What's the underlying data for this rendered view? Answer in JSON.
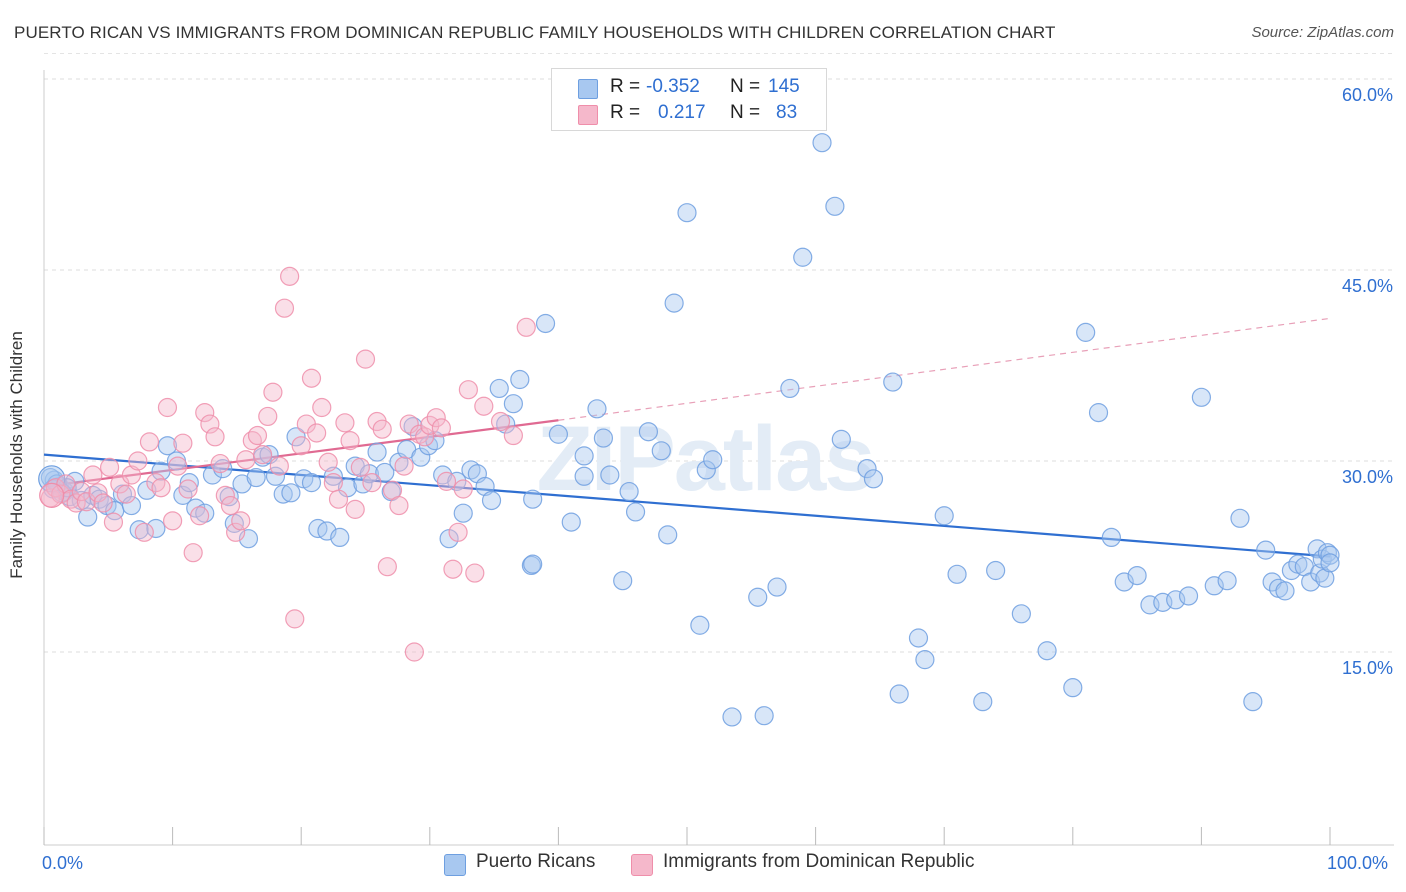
{
  "header": {
    "title": "PUERTO RICAN VS IMMIGRANTS FROM DOMINICAN REPUBLIC FAMILY HOUSEHOLDS WITH CHILDREN CORRELATION CHART",
    "source": "Source: ZipAtlas.com"
  },
  "legend": {
    "rows": [
      {
        "r_label": "R =",
        "r_value": "-0.352",
        "n_label": "N =",
        "n_value": "145",
        "color": "#a8c8f0"
      },
      {
        "r_label": "R =",
        "r_value": "0.217",
        "n_label": "N =",
        "n_value": "83",
        "color": "#f5b8cb"
      }
    ]
  },
  "bottom_legend": [
    {
      "label": "Puerto Ricans",
      "color": "#a8c8f0"
    },
    {
      "label": "Immigrants from Dominican Republic",
      "color": "#f5b8cb"
    }
  ],
  "axes": {
    "ylabel": "Family Households with Children",
    "x_min_label": "0.0%",
    "x_max_label": "100.0%",
    "y_ticks": [
      "15.0%",
      "30.0%",
      "45.0%",
      "60.0%"
    ]
  },
  "watermark": "ZIPatlas",
  "chart_data": {
    "type": "scatter",
    "xlabel": "",
    "ylabel": "Family Households with Children",
    "xlim": [
      0,
      100
    ],
    "ylim": [
      0,
      63
    ],
    "grid": true,
    "legend_position": "top-center",
    "series": [
      {
        "name": "Puerto Ricans",
        "color": "#6e9fe0",
        "fill": "#a8c8f0",
        "trend": {
          "x0": 0,
          "y0": 30.5,
          "x1": 100,
          "y1": 22.5
        },
        "points": [
          [
            0.8,
            28.5
          ],
          [
            1.2,
            28.0
          ],
          [
            1.6,
            27.6
          ],
          [
            2.0,
            27.2
          ],
          [
            2.4,
            28.4
          ],
          [
            2.9,
            26.9
          ],
          [
            3.4,
            25.6
          ],
          [
            3.8,
            27.3
          ],
          [
            4.3,
            27.0
          ],
          [
            4.9,
            26.5
          ],
          [
            5.5,
            26.1
          ],
          [
            6.1,
            27.4
          ],
          [
            6.8,
            26.5
          ],
          [
            7.4,
            24.6
          ],
          [
            8.0,
            27.7
          ],
          [
            8.7,
            24.7
          ],
          [
            9.1,
            29.2
          ],
          [
            9.6,
            31.2
          ],
          [
            10.3,
            30.0
          ],
          [
            10.8,
            27.3
          ],
          [
            11.3,
            28.3
          ],
          [
            11.8,
            26.3
          ],
          [
            12.5,
            25.9
          ],
          [
            13.1,
            28.9
          ],
          [
            13.9,
            29.4
          ],
          [
            14.4,
            27.2
          ],
          [
            14.8,
            25.1
          ],
          [
            15.4,
            28.2
          ],
          [
            15.9,
            23.9
          ],
          [
            16.5,
            28.7
          ],
          [
            17.0,
            30.3
          ],
          [
            17.5,
            30.5
          ],
          [
            18.0,
            28.8
          ],
          [
            18.6,
            27.4
          ],
          [
            19.2,
            27.5
          ],
          [
            19.6,
            31.9
          ],
          [
            20.2,
            28.6
          ],
          [
            20.8,
            28.3
          ],
          [
            21.3,
            24.7
          ],
          [
            22.0,
            24.5
          ],
          [
            22.5,
            28.8
          ],
          [
            23.0,
            24.0
          ],
          [
            23.6,
            27.9
          ],
          [
            24.2,
            29.6
          ],
          [
            24.8,
            28.2
          ],
          [
            25.3,
            29.0
          ],
          [
            25.9,
            30.7
          ],
          [
            26.5,
            29.1
          ],
          [
            27.0,
            27.6
          ],
          [
            27.6,
            29.9
          ],
          [
            28.2,
            30.9
          ],
          [
            28.7,
            32.7
          ],
          [
            29.3,
            30.3
          ],
          [
            29.9,
            31.2
          ],
          [
            30.4,
            31.6
          ],
          [
            31.0,
            28.9
          ],
          [
            31.5,
            23.9
          ],
          [
            32.1,
            28.4
          ],
          [
            32.6,
            25.9
          ],
          [
            33.2,
            29.3
          ],
          [
            33.7,
            29.0
          ],
          [
            34.3,
            28.0
          ],
          [
            34.8,
            26.9
          ],
          [
            35.4,
            35.7
          ],
          [
            35.9,
            32.9
          ],
          [
            36.5,
            34.5
          ],
          [
            37.0,
            36.4
          ],
          [
            38.0,
            27.0
          ],
          [
            37.9,
            21.8
          ],
          [
            38.0,
            21.9
          ],
          [
            39.0,
            40.8
          ],
          [
            40.0,
            32.1
          ],
          [
            41.0,
            25.2
          ],
          [
            42.0,
            28.8
          ],
          [
            42.0,
            30.4
          ],
          [
            43.0,
            34.1
          ],
          [
            43.5,
            31.8
          ],
          [
            44.0,
            28.9
          ],
          [
            45.0,
            20.6
          ],
          [
            45.5,
            27.6
          ],
          [
            46.0,
            26.0
          ],
          [
            47.0,
            32.3
          ],
          [
            48.0,
            30.8
          ],
          [
            48.5,
            24.2
          ],
          [
            49.0,
            42.4
          ],
          [
            50.0,
            49.5
          ],
          [
            51.0,
            17.1
          ],
          [
            51.5,
            29.3
          ],
          [
            52.0,
            30.1
          ],
          [
            53.5,
            9.9
          ],
          [
            55.5,
            19.3
          ],
          [
            56.0,
            10.0
          ],
          [
            57.0,
            20.1
          ],
          [
            58.0,
            35.7
          ],
          [
            59.0,
            46.0
          ],
          [
            60.5,
            55.0
          ],
          [
            61.5,
            50.0
          ],
          [
            62.0,
            31.7
          ],
          [
            64.0,
            29.4
          ],
          [
            64.5,
            28.6
          ],
          [
            66.0,
            36.2
          ],
          [
            66.5,
            11.7
          ],
          [
            68.0,
            16.1
          ],
          [
            68.5,
            14.4
          ],
          [
            70.0,
            25.7
          ],
          [
            71.0,
            21.1
          ],
          [
            73.0,
            11.1
          ],
          [
            74.0,
            21.4
          ],
          [
            76.0,
            18.0
          ],
          [
            78.0,
            15.1
          ],
          [
            80.0,
            12.2
          ],
          [
            81.0,
            40.1
          ],
          [
            82.0,
            33.8
          ],
          [
            83.0,
            24.0
          ],
          [
            84.0,
            20.5
          ],
          [
            85.0,
            21.0
          ],
          [
            86.0,
            18.7
          ],
          [
            87.0,
            18.9
          ],
          [
            88.0,
            19.1
          ],
          [
            89.0,
            19.4
          ],
          [
            90.0,
            35.0
          ],
          [
            91.0,
            20.2
          ],
          [
            92.0,
            20.6
          ],
          [
            93.0,
            25.5
          ],
          [
            94.0,
            11.1
          ],
          [
            95.0,
            23.0
          ],
          [
            95.5,
            20.5
          ],
          [
            96.0,
            20.0
          ],
          [
            96.5,
            19.8
          ],
          [
            97.0,
            21.4
          ],
          [
            97.5,
            21.9
          ],
          [
            98.0,
            21.7
          ],
          [
            98.5,
            20.5
          ],
          [
            99.0,
            23.1
          ],
          [
            99.2,
            21.2
          ],
          [
            99.4,
            22.3
          ],
          [
            99.6,
            20.8
          ],
          [
            99.8,
            22.8
          ],
          [
            100.0,
            22.6
          ],
          [
            100.0,
            22.0
          ],
          [
            0.5,
            28.7
          ],
          [
            0.7,
            27.8
          ],
          [
            1.0,
            28.2
          ],
          [
            1.4,
            27.5
          ],
          [
            1.8,
            27.9
          ]
        ]
      },
      {
        "name": "Immigrants from Dominican Republic",
        "color": "#ef8eaa",
        "fill": "#f5b8cb",
        "trend": {
          "x0": 0,
          "y0": 28.0,
          "x1": 40,
          "y1": 33.2
        },
        "trend_dashed": {
          "x0": 40,
          "y0": 33.2,
          "x1": 100,
          "y1": 41.2
        },
        "points": [
          [
            0.5,
            27.1
          ],
          [
            0.9,
            27.9
          ],
          [
            1.3,
            27.4
          ],
          [
            1.7,
            28.2
          ],
          [
            2.1,
            27.0
          ],
          [
            2.5,
            26.7
          ],
          [
            2.9,
            27.6
          ],
          [
            3.3,
            26.8
          ],
          [
            3.8,
            28.9
          ],
          [
            4.2,
            27.5
          ],
          [
            4.6,
            26.7
          ],
          [
            5.1,
            29.5
          ],
          [
            5.4,
            25.2
          ],
          [
            5.9,
            28.2
          ],
          [
            6.4,
            27.4
          ],
          [
            6.8,
            28.9
          ],
          [
            7.3,
            30.0
          ],
          [
            7.8,
            24.4
          ],
          [
            8.2,
            31.5
          ],
          [
            8.7,
            28.3
          ],
          [
            9.1,
            27.9
          ],
          [
            9.6,
            34.2
          ],
          [
            10.0,
            25.3
          ],
          [
            10.4,
            29.6
          ],
          [
            10.8,
            31.4
          ],
          [
            11.2,
            27.8
          ],
          [
            11.6,
            22.8
          ],
          [
            12.1,
            25.7
          ],
          [
            12.5,
            33.8
          ],
          [
            12.9,
            32.9
          ],
          [
            13.3,
            31.9
          ],
          [
            13.7,
            29.8
          ],
          [
            14.1,
            27.3
          ],
          [
            14.5,
            26.5
          ],
          [
            14.9,
            24.4
          ],
          [
            15.3,
            25.3
          ],
          [
            15.7,
            30.1
          ],
          [
            16.2,
            31.6
          ],
          [
            16.6,
            32.0
          ],
          [
            17.0,
            30.5
          ],
          [
            17.4,
            33.5
          ],
          [
            17.8,
            35.4
          ],
          [
            18.3,
            29.6
          ],
          [
            18.7,
            42.0
          ],
          [
            19.1,
            44.5
          ],
          [
            19.5,
            17.6
          ],
          [
            20.0,
            31.2
          ],
          [
            20.4,
            32.9
          ],
          [
            20.8,
            36.5
          ],
          [
            21.2,
            32.2
          ],
          [
            21.6,
            34.2
          ],
          [
            22.1,
            29.9
          ],
          [
            22.5,
            28.3
          ],
          [
            22.9,
            27.0
          ],
          [
            23.4,
            33.0
          ],
          [
            23.8,
            31.6
          ],
          [
            24.2,
            26.2
          ],
          [
            24.6,
            29.5
          ],
          [
            25.0,
            38.0
          ],
          [
            25.5,
            28.3
          ],
          [
            25.9,
            33.1
          ],
          [
            26.3,
            32.5
          ],
          [
            26.7,
            21.7
          ],
          [
            27.1,
            27.7
          ],
          [
            27.6,
            26.5
          ],
          [
            28.0,
            29.6
          ],
          [
            28.4,
            32.9
          ],
          [
            28.8,
            15.0
          ],
          [
            29.2,
            32.1
          ],
          [
            29.6,
            31.9
          ],
          [
            30.0,
            32.8
          ],
          [
            30.5,
            33.4
          ],
          [
            30.9,
            32.6
          ],
          [
            31.3,
            28.4
          ],
          [
            31.8,
            21.5
          ],
          [
            32.2,
            24.4
          ],
          [
            32.6,
            27.8
          ],
          [
            33.0,
            35.6
          ],
          [
            33.5,
            21.2
          ],
          [
            34.2,
            34.3
          ],
          [
            35.5,
            33.1
          ],
          [
            36.5,
            32.0
          ],
          [
            37.5,
            40.5
          ]
        ]
      }
    ]
  }
}
